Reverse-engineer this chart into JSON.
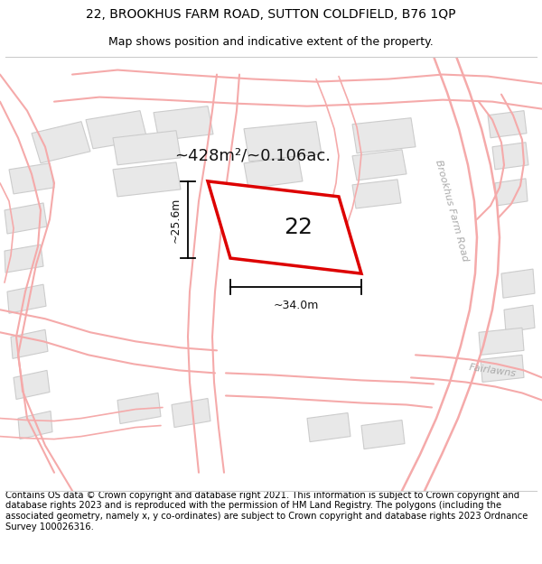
{
  "title": "22, BROOKHUS FARM ROAD, SUTTON COLDFIELD, B76 1QP",
  "subtitle": "Map shows position and indicative extent of the property.",
  "area_label": "~428m²/~0.106ac.",
  "property_number": "22",
  "dim_vertical": "~25.6m",
  "dim_horizontal": "~34.0m",
  "road_label1": "Brookhus Farm Road",
  "road_label2": "Fairlawns",
  "footer": "Contains OS data © Crown copyright and database right 2021. This information is subject to Crown copyright and database rights 2023 and is reproduced with the permission of HM Land Registry. The polygons (including the associated geometry, namely x, y co-ordinates) are subject to Crown copyright and database rights 2023 Ordnance Survey 100026316.",
  "map_bg": "#ffffff",
  "road_color": "#f5aaaa",
  "building_fill": "#e8e8e8",
  "building_edge": "#cccccc",
  "plot_edge": "#dd0000",
  "plot_fill": "#ffffff",
  "title_fontsize": 10,
  "subtitle_fontsize": 9,
  "footer_fontsize": 7.2,
  "road_label_color": "#aaaaaa",
  "dim_color": "#111111",
  "number_fontsize": 18,
  "area_fontsize": 13
}
